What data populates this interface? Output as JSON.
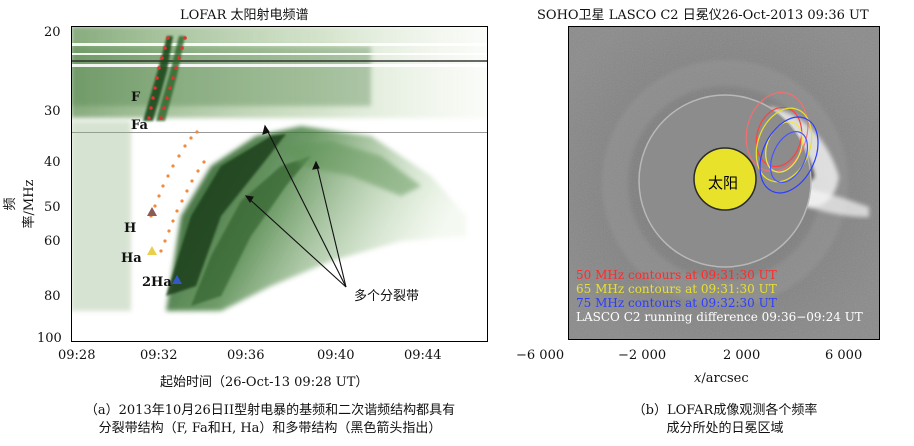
{
  "figure_a": {
    "title": "LOFAR 太阳射电频谱",
    "ylabel": "频率/MHz",
    "xlabel": "起始时间（26-Oct-13 09:28 UT）",
    "y_ticks": [
      "20",
      "30",
      "40",
      "50",
      "60",
      "80",
      "100"
    ],
    "x_ticks": [
      "09:28",
      "09:32",
      "09:36",
      "09:40",
      "09:44"
    ],
    "labels": {
      "F": "F",
      "Fa": "Fa",
      "H": "H",
      "Ha": "Ha",
      "2Ha": "2Ha",
      "multi": "多个分裂带"
    },
    "caption_line1": "（a）2013年10月26日II型射电暴的基频和二次谐频结构都具有",
    "caption_line2": "分裂带结构（F, Fa和H, Ha）和多带结构（黑色箭头指出）"
  },
  "figure_b": {
    "title": "SOHO卫星 LASCO C2 日冕仪26-Oct-2013 09:36 UT",
    "sun_label": "太阳",
    "legend": [
      {
        "text": "50 MHz contours at 09:31:30 UT",
        "color": "#ff2a2a"
      },
      {
        "text": "65 MHz contours at 09:31:30 UT",
        "color": "#e8e030"
      },
      {
        "text": "75 MHz contours at 09:32:30 UT",
        "color": "#2d3dff"
      },
      {
        "text": "LASCO C2 running difference 09:36−09:24 UT",
        "color": "#ffffff"
      }
    ],
    "x_ticks": [
      "−6 000",
      "−2 000",
      "2 000",
      "6 000"
    ],
    "xlabel_italic": "x",
    "xlabel_rest": "/arcsec",
    "caption_line1": "（b）LOFAR成像观测各个频率",
    "caption_line2": "成分所处的日冕区域"
  }
}
